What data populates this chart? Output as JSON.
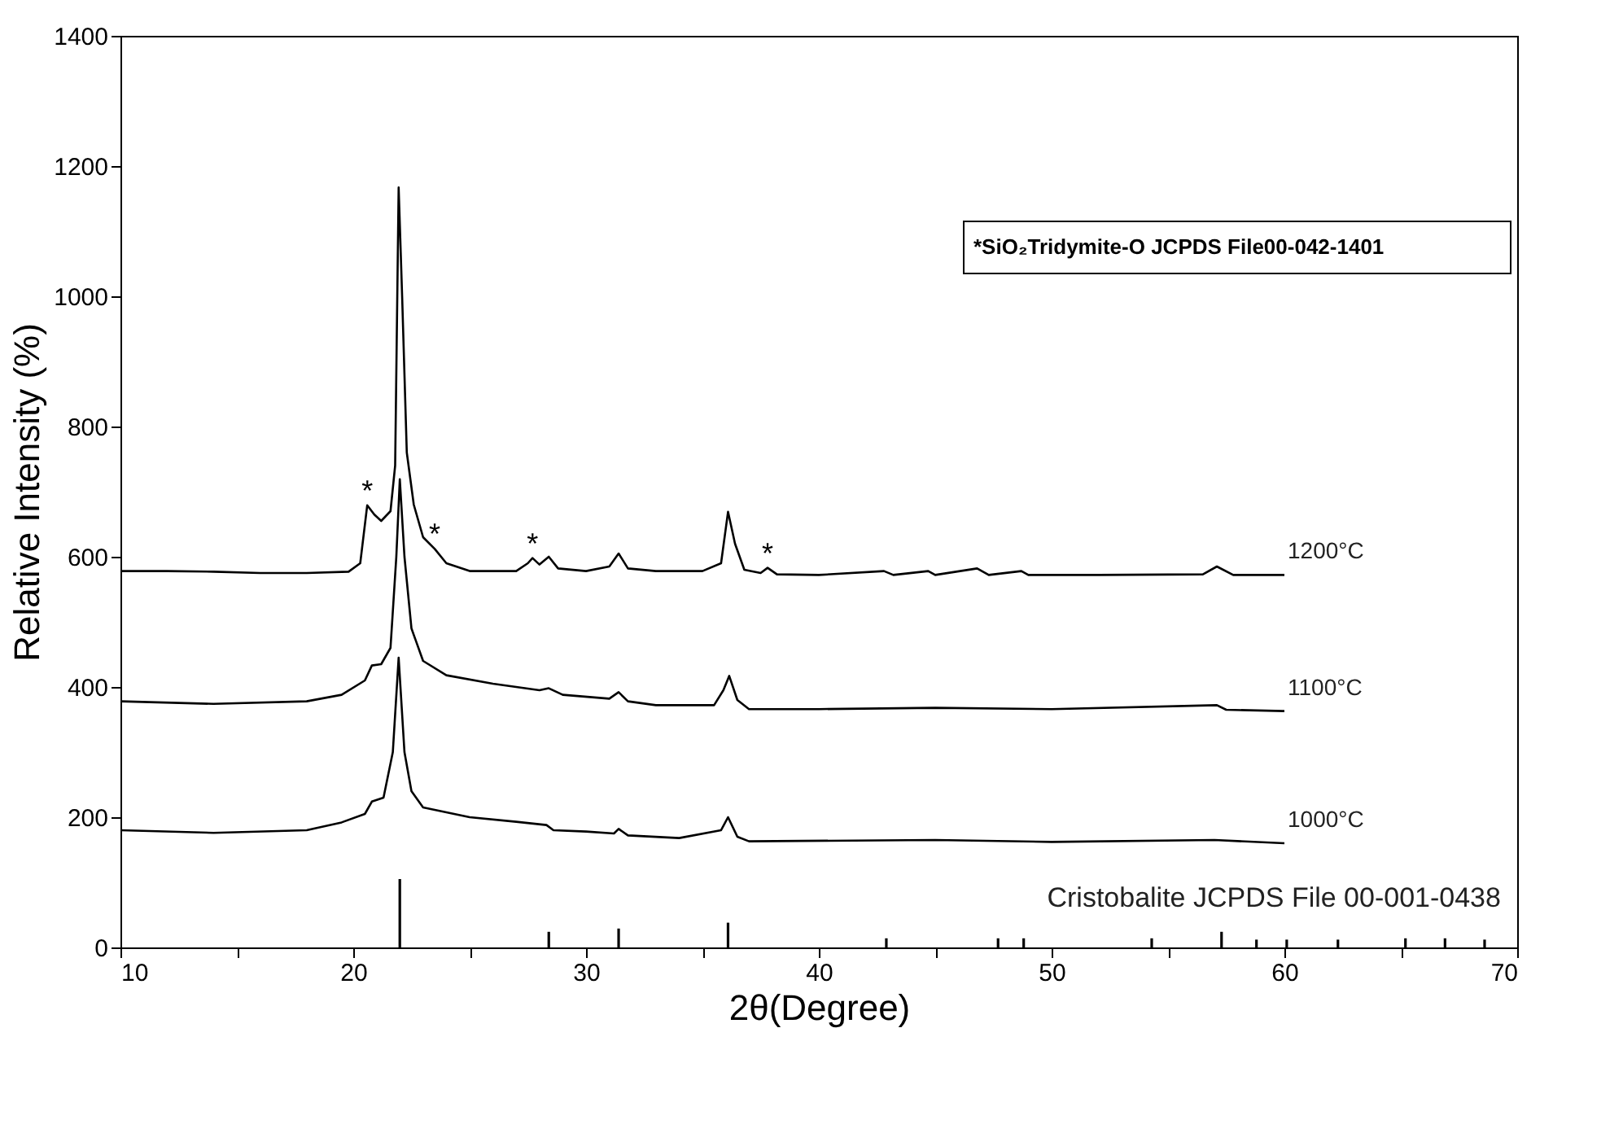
{
  "chart_data": {
    "type": "line",
    "xlabel": "2θ(Degree)",
    "ylabel": "Relative Intensity (%)",
    "xlim": [
      10,
      70
    ],
    "ylim": [
      0,
      1400
    ],
    "xticks": [
      10,
      {
        "value": 15,
        "label": null
      },
      20,
      {
        "value": 25,
        "label": null
      },
      30,
      {
        "value": 35,
        "label": null
      },
      40,
      {
        "value": 45,
        "label": null
      },
      50,
      {
        "value": 55,
        "label": null
      },
      60,
      {
        "value": 65,
        "label": null
      },
      70
    ],
    "yticks": [
      0,
      200,
      400,
      600,
      800,
      1000,
      1200,
      1400
    ],
    "grid": false,
    "legend": false,
    "marker": "none",
    "line_style": "solid",
    "series": [
      {
        "name": "1200°C",
        "color": "#000000",
        "x": [
          10,
          12,
          14,
          16,
          18,
          19.8,
          20.3,
          20.6,
          20.9,
          21.2,
          21.6,
          21.8,
          21.95,
          22.1,
          22.3,
          22.6,
          23.0,
          23.5,
          24,
          25,
          27,
          27.5,
          27.7,
          28.0,
          28.4,
          28.8,
          30,
          31.0,
          31.4,
          31.8,
          33,
          35,
          35.8,
          36.1,
          36.4,
          36.8,
          37.5,
          37.8,
          38.2,
          40,
          42.8,
          43.2,
          44.7,
          45,
          46.8,
          47.3,
          48.7,
          49,
          52,
          56.5,
          57.1,
          57.8,
          60
        ],
        "values": [
          578,
          578,
          577,
          575,
          575,
          577,
          590,
          679,
          665,
          655,
          670,
          740,
          1167,
          1000,
          760,
          680,
          630,
          612,
          590,
          578,
          578,
          590,
          598,
          588,
          600,
          582,
          578,
          585,
          605,
          582,
          578,
          578,
          590,
          669,
          620,
          580,
          575,
          583,
          573,
          572,
          578,
          572,
          578,
          572,
          582,
          572,
          578,
          572,
          572,
          573,
          585,
          572,
          572
        ]
      },
      {
        "name": "1100°C",
        "color": "#000000",
        "x": [
          10,
          14,
          18,
          19.5,
          20.5,
          20.8,
          21.2,
          21.6,
          21.85,
          22.0,
          22.2,
          22.5,
          23,
          24,
          26,
          28,
          28.4,
          29,
          31,
          31.4,
          31.8,
          33,
          35.5,
          35.9,
          36.15,
          36.5,
          37,
          40,
          45,
          50,
          57.1,
          57.5,
          60
        ],
        "values": [
          378,
          374,
          378,
          388,
          410,
          433,
          435,
          460,
          600,
          719,
          600,
          490,
          440,
          418,
          405,
          395,
          398,
          388,
          382,
          392,
          378,
          372,
          372,
          395,
          417,
          380,
          366,
          366,
          368,
          366,
          372,
          365,
          363
        ]
      },
      {
        "name": "1000°C",
        "color": "#000000",
        "x": [
          10,
          14,
          18,
          19.5,
          20.5,
          20.8,
          21.3,
          21.7,
          21.95,
          22.2,
          22.5,
          23,
          25,
          27,
          28.3,
          28.6,
          30,
          31.2,
          31.4,
          31.8,
          34,
          35.8,
          36.1,
          36.5,
          37,
          45,
          50,
          57,
          60
        ],
        "values": [
          180,
          176,
          180,
          192,
          205,
          224,
          230,
          300,
          445,
          300,
          240,
          215,
          200,
          193,
          188,
          180,
          178,
          175,
          182,
          172,
          168,
          180,
          200,
          170,
          163,
          165,
          162,
          165,
          160
        ]
      },
      {
        "name": "Cristobalite  JCPDS File 00-001-0438",
        "type": "bar",
        "color": "#000000",
        "x": [
          22.0,
          28.4,
          31.4,
          36.1,
          42.9,
          47.7,
          48.8,
          54.3,
          57.3,
          58.8,
          60.1,
          62.3,
          65.2,
          66.9,
          68.6
        ],
        "values": [
          105,
          24,
          29,
          38,
          14,
          14,
          14,
          14,
          24,
          12,
          12,
          12,
          14,
          14,
          12
        ]
      }
    ],
    "annotations": [
      {
        "text": "*",
        "x": 20.6,
        "y": 679
      },
      {
        "text": "*",
        "x": 23.5,
        "y": 612
      },
      {
        "text": "*",
        "x": 27.7,
        "y": 598
      },
      {
        "text": "*",
        "x": 37.8,
        "y": 583
      },
      "*SiO₂Tridymite-O  JCPDS File00-042-1401"
    ]
  }
}
